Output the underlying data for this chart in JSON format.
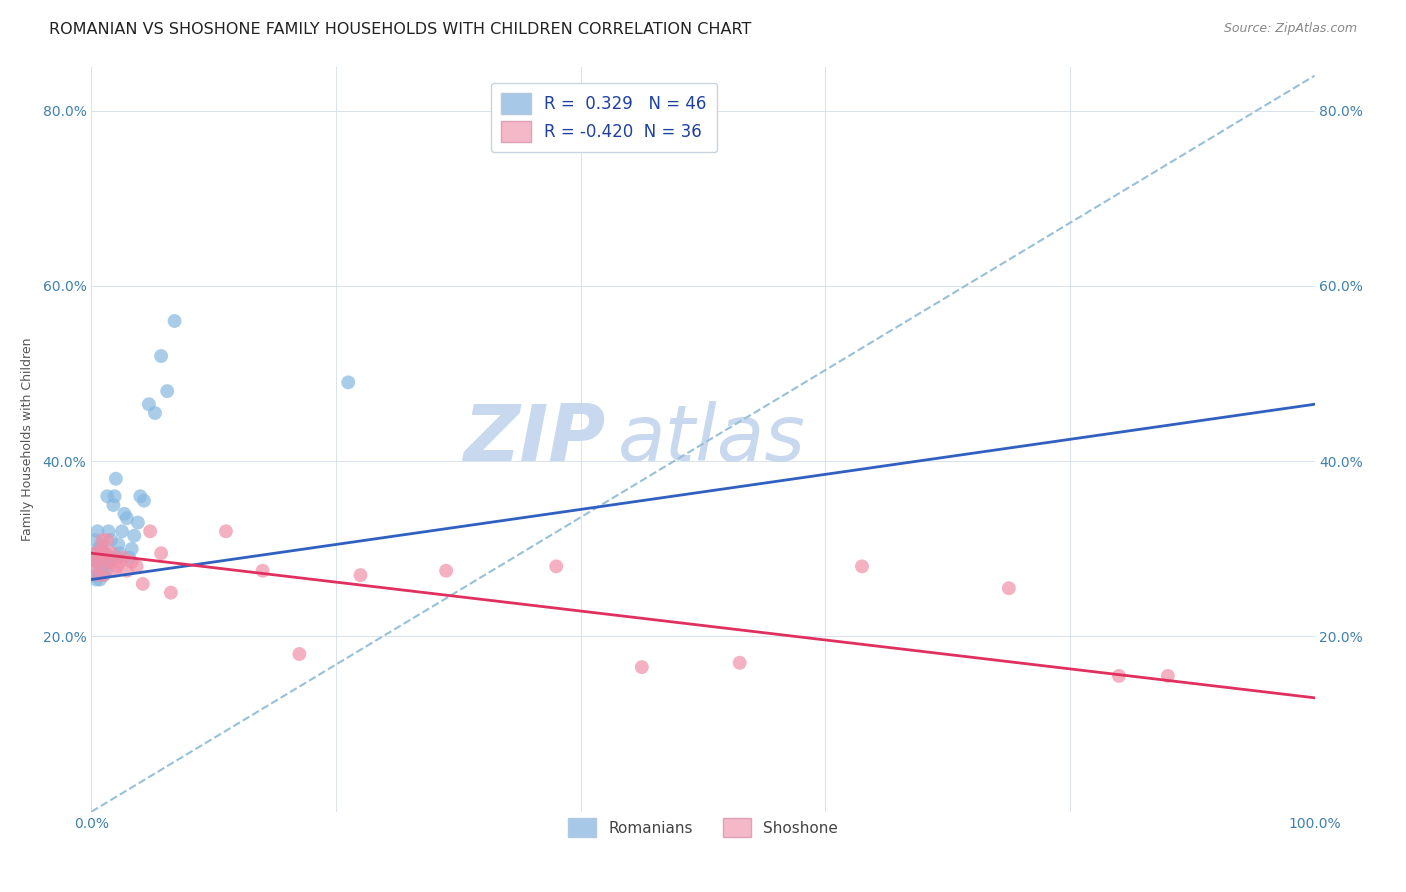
{
  "title": "ROMANIAN VS SHOSHONE FAMILY HOUSEHOLDS WITH CHILDREN CORRELATION CHART",
  "source": "Source: ZipAtlas.com",
  "ylabel": "Family Households with Children",
  "xlim": [
    0,
    1.0
  ],
  "ylim": [
    0.0,
    0.85
  ],
  "xticks": [
    0.0,
    0.2,
    0.4,
    0.6,
    0.8,
    1.0
  ],
  "yticks": [
    0.0,
    0.2,
    0.4,
    0.6,
    0.8
  ],
  "xtick_labels_left": "0.0%",
  "xtick_labels_right": "100.0%",
  "ytick_labels": [
    "20.0%",
    "40.0%",
    "60.0%",
    "80.0%"
  ],
  "romanian_R": "0.329",
  "romanian_N": "46",
  "shoshone_R": "-0.420",
  "shoshone_N": "36",
  "legend_color_romanian": "#a8c8e8",
  "legend_color_shoshone": "#f4b8c8",
  "dot_color_romanian": "#85b8e0",
  "dot_color_shoshone": "#f090a8",
  "line_color_romanian": "#3060c0",
  "line_color_shoshone": "#e03060",
  "dashed_line_color": "#98c0d8",
  "watermark_zip": "ZIP",
  "watermark_atlas": "atlas",
  "watermark_color": "#c8d8ee",
  "background_color": "#ffffff",
  "title_fontsize": 11.5,
  "source_fontsize": 9,
  "label_fontsize": 9,
  "tick_fontsize": 10,
  "legend_fontsize": 12,
  "romanian_line_x0": 0.0,
  "romanian_line_x1": 1.0,
  "romanian_line_y0": 0.265,
  "romanian_line_y1": 0.465,
  "shoshone_line_x0": 0.0,
  "shoshone_line_x1": 1.0,
  "shoshone_line_y0": 0.295,
  "shoshone_line_y1": 0.13,
  "dash_line_x0": 0.0,
  "dash_line_x1": 1.0,
  "dash_line_y0": 0.0,
  "dash_line_y1": 0.84,
  "romanian_scatter_x": [
    0.002,
    0.003,
    0.003,
    0.004,
    0.004,
    0.005,
    0.005,
    0.005,
    0.006,
    0.006,
    0.007,
    0.007,
    0.008,
    0.008,
    0.009,
    0.009,
    0.01,
    0.01,
    0.011,
    0.012,
    0.013,
    0.014,
    0.015,
    0.016,
    0.017,
    0.018,
    0.019,
    0.02,
    0.021,
    0.022,
    0.023,
    0.025,
    0.027,
    0.029,
    0.031,
    0.033,
    0.035,
    0.038,
    0.04,
    0.043,
    0.047,
    0.052,
    0.057,
    0.062,
    0.068,
    0.21
  ],
  "romanian_scatter_y": [
    0.27,
    0.295,
    0.31,
    0.265,
    0.285,
    0.27,
    0.285,
    0.32,
    0.27,
    0.3,
    0.265,
    0.295,
    0.285,
    0.305,
    0.275,
    0.29,
    0.27,
    0.295,
    0.285,
    0.275,
    0.36,
    0.32,
    0.285,
    0.31,
    0.29,
    0.35,
    0.36,
    0.38,
    0.29,
    0.305,
    0.295,
    0.32,
    0.34,
    0.335,
    0.29,
    0.3,
    0.315,
    0.33,
    0.36,
    0.355,
    0.465,
    0.455,
    0.52,
    0.48,
    0.56,
    0.49
  ],
  "shoshone_scatter_x": [
    0.003,
    0.004,
    0.005,
    0.006,
    0.007,
    0.008,
    0.009,
    0.01,
    0.011,
    0.012,
    0.013,
    0.015,
    0.017,
    0.019,
    0.021,
    0.023,
    0.026,
    0.029,
    0.033,
    0.037,
    0.042,
    0.048,
    0.057,
    0.065,
    0.11,
    0.14,
    0.17,
    0.22,
    0.29,
    0.38,
    0.45,
    0.53,
    0.63,
    0.75,
    0.84,
    0.88
  ],
  "shoshone_scatter_y": [
    0.28,
    0.295,
    0.285,
    0.27,
    0.295,
    0.3,
    0.31,
    0.27,
    0.285,
    0.295,
    0.31,
    0.285,
    0.295,
    0.275,
    0.28,
    0.285,
    0.29,
    0.275,
    0.285,
    0.28,
    0.26,
    0.32,
    0.295,
    0.25,
    0.32,
    0.275,
    0.18,
    0.27,
    0.275,
    0.28,
    0.165,
    0.17,
    0.28,
    0.255,
    0.155,
    0.155
  ]
}
